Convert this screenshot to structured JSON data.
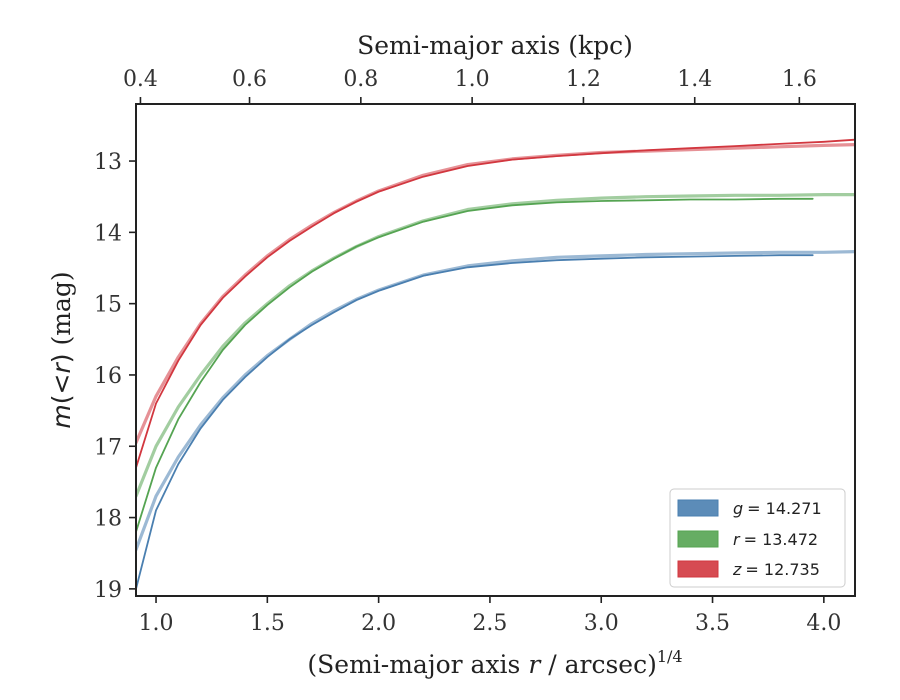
{
  "chart_data": {
    "type": "line",
    "xlabel": "(Semi-major axis r / arcsec)",
    "xlabel_main": "(Semi-major axis ",
    "xlabel_r": "r",
    "xlabel_rest": " / arcsec)",
    "xlabel_sup": "1/4",
    "ylabel": "m(<r) (mag)",
    "ylabel_m": "m",
    "ylabel_lt": "(<",
    "ylabel_r": "r",
    "ylabel_close": ")",
    "ylabel_unit": " (mag)",
    "top_xlabel": "Semi-major axis (kpc)",
    "xlim": [
      0.91,
      4.14
    ],
    "ylim": [
      19.1,
      12.2
    ],
    "y_inverted": true,
    "xticks": [
      "1.0",
      "1.5",
      "2.0",
      "2.5",
      "3.0",
      "3.5",
      "4.0"
    ],
    "xtick_values": [
      1.0,
      1.5,
      2.0,
      2.5,
      3.0,
      3.5,
      4.0
    ],
    "yticks": [
      "13",
      "14",
      "15",
      "16",
      "17",
      "18",
      "19"
    ],
    "ytick_values": [
      13,
      14,
      15,
      16,
      17,
      18,
      19
    ],
    "top_xticks": [
      "0.4",
      "0.6",
      "0.8",
      "1.0",
      "1.2",
      "1.4",
      "1.6"
    ],
    "top_xtick_positions_bottom_units": [
      0.93,
      1.42,
      1.92,
      2.42,
      2.92,
      3.42,
      3.89
    ],
    "legend_placement": "bottom-right",
    "legend": [
      {
        "label": "g = 14.271",
        "var": "g",
        "value": "= 14.271",
        "color": "#4a7fb0"
      },
      {
        "label": "r = 13.472",
        "var": "r",
        "value": "= 13.472",
        "color": "#55a452"
      },
      {
        "label": "z = 12.735",
        "var": "z",
        "value": "= 12.735",
        "color": "#d2373f"
      }
    ],
    "series": [
      {
        "name": "g = 14.271",
        "color": "#4a7fb0",
        "x": [
          0.91,
          1.0,
          1.1,
          1.2,
          1.3,
          1.4,
          1.5,
          1.6,
          1.7,
          1.8,
          1.9,
          2.0,
          2.2,
          2.4,
          2.6,
          2.8,
          3.0,
          3.2,
          3.4,
          3.6,
          3.8,
          3.95
        ],
        "y": [
          19.0,
          17.9,
          17.25,
          16.75,
          16.35,
          16.03,
          15.75,
          15.5,
          15.3,
          15.12,
          14.95,
          14.82,
          14.61,
          14.49,
          14.43,
          14.39,
          14.37,
          14.35,
          14.34,
          14.33,
          14.32,
          14.32
        ],
        "x_model": [
          0.91,
          1.0,
          1.1,
          1.2,
          1.3,
          1.4,
          1.5,
          1.6,
          1.7,
          1.8,
          1.9,
          2.0,
          2.2,
          2.4,
          2.6,
          2.8,
          3.0,
          3.2,
          3.4,
          3.6,
          3.8,
          4.0,
          4.14
        ],
        "y_model": [
          18.45,
          17.7,
          17.15,
          16.7,
          16.32,
          16.0,
          15.73,
          15.5,
          15.28,
          15.1,
          14.94,
          14.81,
          14.6,
          14.47,
          14.4,
          14.35,
          14.33,
          14.31,
          14.3,
          14.29,
          14.28,
          14.28,
          14.27
        ]
      },
      {
        "name": "r = 13.472",
        "color": "#55a452",
        "x": [
          0.91,
          1.0,
          1.1,
          1.2,
          1.3,
          1.4,
          1.5,
          1.6,
          1.7,
          1.8,
          1.9,
          2.0,
          2.2,
          2.4,
          2.6,
          2.8,
          3.0,
          3.2,
          3.4,
          3.6,
          3.8,
          3.95
        ],
        "y": [
          18.2,
          17.3,
          16.62,
          16.1,
          15.65,
          15.3,
          15.02,
          14.77,
          14.55,
          14.37,
          14.2,
          14.07,
          13.85,
          13.7,
          13.62,
          13.58,
          13.56,
          13.55,
          13.54,
          13.54,
          13.53,
          13.53
        ],
        "x_model": [
          0.91,
          1.0,
          1.1,
          1.2,
          1.3,
          1.4,
          1.5,
          1.6,
          1.7,
          1.8,
          1.9,
          2.0,
          2.2,
          2.4,
          2.6,
          2.8,
          3.0,
          3.2,
          3.4,
          3.6,
          3.8,
          4.0,
          4.14
        ],
        "y_model": [
          17.7,
          17.0,
          16.45,
          16.0,
          15.6,
          15.27,
          15.0,
          14.75,
          14.54,
          14.36,
          14.2,
          14.06,
          13.84,
          13.68,
          13.6,
          13.55,
          13.52,
          13.5,
          13.49,
          13.48,
          13.48,
          13.47,
          13.47
        ]
      },
      {
        "name": "z = 12.735",
        "color": "#d2373f",
        "x": [
          0.91,
          1.0,
          1.1,
          1.2,
          1.3,
          1.4,
          1.5,
          1.6,
          1.7,
          1.8,
          1.9,
          2.0,
          2.2,
          2.4,
          2.6,
          2.8,
          3.0,
          3.2,
          3.4,
          3.6,
          3.8,
          4.0,
          4.14
        ],
        "y": [
          17.3,
          16.4,
          15.8,
          15.3,
          14.92,
          14.62,
          14.35,
          14.12,
          13.92,
          13.73,
          13.57,
          13.43,
          13.22,
          13.07,
          12.98,
          12.93,
          12.89,
          12.85,
          12.82,
          12.79,
          12.76,
          12.73,
          12.7
        ],
        "x_model": [
          0.91,
          1.0,
          1.1,
          1.2,
          1.3,
          1.4,
          1.5,
          1.6,
          1.7,
          1.8,
          1.9,
          2.0,
          2.2,
          2.4,
          2.6,
          2.8,
          3.0,
          3.2,
          3.4,
          3.6,
          3.8,
          4.0,
          4.14
        ],
        "y_model": [
          16.95,
          16.3,
          15.75,
          15.28,
          14.9,
          14.6,
          14.33,
          14.1,
          13.9,
          13.72,
          13.56,
          13.42,
          13.2,
          13.05,
          12.97,
          12.92,
          12.88,
          12.86,
          12.84,
          12.82,
          12.8,
          12.78,
          12.77
        ]
      }
    ]
  }
}
